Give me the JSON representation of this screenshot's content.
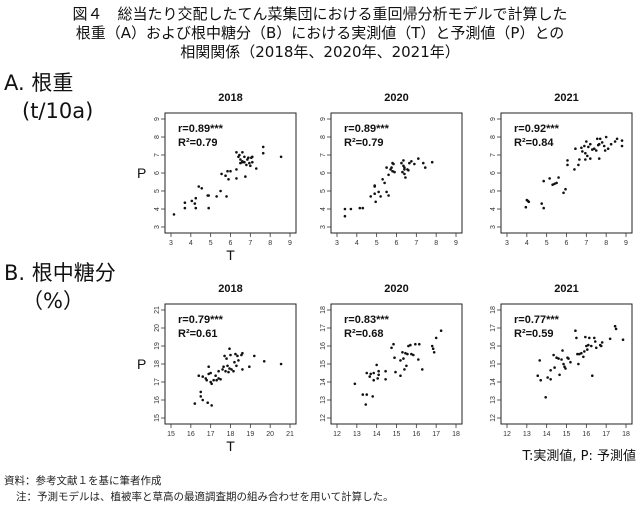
{
  "title": {
    "line1": "図４　総当たり交配したてん菜集団における重回帰分析モデルで計算した",
    "line2": "根重（A）および根中糖分（B）における実測値（T）と予測値（P）との",
    "line3": "相関関係（2018年、2020年、2021年）"
  },
  "sections": {
    "a_label": "A. 根重",
    "a_unit": "(t/10a)",
    "b_label": "B. 根中糖分",
    "b_unit": "（%）"
  },
  "legend": "T:実測値, P: 予測値",
  "notes": {
    "source": "資料：参考文献１を基に筆者作成",
    "note": "注：予測モデルは、植被率と草高の最適調査期の組み合わせを用いて計算した。"
  },
  "chart_data": [
    {
      "type": "scatter",
      "section": "A",
      "title": "2018",
      "xlabel": "T",
      "ylabel": "P",
      "xlim": [
        3,
        9
      ],
      "ylim": [
        3,
        9
      ],
      "ticks": [
        3,
        4,
        5,
        6,
        7,
        8,
        9
      ],
      "r": "r=0.89***",
      "r2": "R²=0.79",
      "points": [
        [
          3.15,
          3.7
        ],
        [
          3.7,
          4.05
        ],
        [
          3.7,
          4.35
        ],
        [
          4.05,
          4.45
        ],
        [
          4.2,
          4.3
        ],
        [
          4.25,
          4.6
        ],
        [
          4.25,
          4.05
        ],
        [
          4.4,
          5.25
        ],
        [
          4.55,
          5.15
        ],
        [
          4.85,
          4.75
        ],
        [
          4.9,
          4.75
        ],
        [
          4.9,
          4.05
        ],
        [
          5.3,
          4.7
        ],
        [
          5.5,
          5.0
        ],
        [
          5.8,
          4.7
        ],
        [
          5.55,
          5.95
        ],
        [
          5.75,
          5.85
        ],
        [
          5.85,
          6.1
        ],
        [
          5.9,
          5.65
        ],
        [
          6.0,
          6.1
        ],
        [
          6.3,
          6.2
        ],
        [
          6.3,
          5.7
        ],
        [
          6.3,
          7.15
        ],
        [
          6.4,
          6.9
        ],
        [
          6.45,
          7.0
        ],
        [
          6.5,
          6.75
        ],
        [
          6.5,
          6.55
        ],
        [
          6.6,
          7.15
        ],
        [
          6.6,
          6.6
        ],
        [
          6.7,
          6.9
        ],
        [
          6.7,
          6.6
        ],
        [
          6.8,
          6.45
        ],
        [
          6.75,
          5.8
        ],
        [
          6.85,
          6.75
        ],
        [
          6.9,
          6.85
        ],
        [
          6.95,
          6.55
        ],
        [
          7.0,
          6.4
        ],
        [
          7.05,
          6.85
        ],
        [
          7.1,
          6.6
        ],
        [
          7.1,
          6.9
        ],
        [
          7.3,
          6.25
        ],
        [
          7.65,
          7.1
        ],
        [
          7.65,
          7.45
        ],
        [
          8.55,
          6.9
        ],
        [
          6.6,
          6.65
        ]
      ]
    },
    {
      "type": "scatter",
      "section": "A",
      "title": "2020",
      "xlabel": "",
      "ylabel": "",
      "xlim": [
        3,
        9
      ],
      "ylim": [
        3,
        9
      ],
      "ticks": [
        3,
        4,
        5,
        6,
        7,
        8,
        9
      ],
      "r": "r=0.89***",
      "r2": "R²=0.79",
      "points": [
        [
          3.4,
          3.6
        ],
        [
          3.4,
          4.0
        ],
        [
          3.7,
          4.0
        ],
        [
          4.15,
          4.05
        ],
        [
          4.3,
          4.05
        ],
        [
          4.7,
          4.7
        ],
        [
          4.9,
          5.3
        ],
        [
          4.9,
          5.25
        ],
        [
          4.9,
          4.85
        ],
        [
          4.95,
          4.4
        ],
        [
          5.1,
          4.95
        ],
        [
          5.2,
          4.7
        ],
        [
          5.3,
          5.65
        ],
        [
          5.4,
          5.45
        ],
        [
          5.5,
          4.95
        ],
        [
          5.6,
          4.75
        ],
        [
          5.5,
          6.3
        ],
        [
          5.6,
          5.9
        ],
        [
          5.7,
          6.2
        ],
        [
          5.8,
          6.55
        ],
        [
          5.85,
          6.5
        ],
        [
          5.8,
          6.1
        ],
        [
          5.9,
          6.05
        ],
        [
          5.75,
          6.3
        ],
        [
          6.25,
          6.55
        ],
        [
          6.3,
          6.05
        ],
        [
          6.35,
          6.7
        ],
        [
          6.35,
          6.4
        ],
        [
          6.4,
          6.3
        ],
        [
          6.4,
          6.2
        ],
        [
          6.45,
          5.75
        ],
        [
          6.4,
          5.95
        ],
        [
          6.55,
          6.2
        ],
        [
          6.6,
          6.15
        ],
        [
          6.65,
          6.55
        ],
        [
          6.75,
          6.65
        ],
        [
          6.9,
          6.5
        ],
        [
          7.1,
          6.8
        ],
        [
          7.35,
          6.55
        ],
        [
          7.45,
          6.3
        ],
        [
          7.8,
          6.6
        ]
      ]
    },
    {
      "type": "scatter",
      "section": "A",
      "title": "2021",
      "xlabel": "",
      "ylabel": "",
      "xlim": [
        3,
        9
      ],
      "ylim": [
        3,
        9
      ],
      "ticks": [
        3,
        4,
        5,
        6,
        7,
        8,
        9
      ],
      "r": "r=0.92***",
      "r2": "R²=0.84",
      "points": [
        [
          3.95,
          4.1
        ],
        [
          4.0,
          4.5
        ],
        [
          4.05,
          4.45
        ],
        [
          4.1,
          4.4
        ],
        [
          4.75,
          4.3
        ],
        [
          4.85,
          5.55
        ],
        [
          4.85,
          4.05
        ],
        [
          5.15,
          5.7
        ],
        [
          5.3,
          5.35
        ],
        [
          5.4,
          5.4
        ],
        [
          5.5,
          5.45
        ],
        [
          5.6,
          5.75
        ],
        [
          5.85,
          4.9
        ],
        [
          5.95,
          5.1
        ],
        [
          6.05,
          6.45
        ],
        [
          6.05,
          6.7
        ],
        [
          6.4,
          6.2
        ],
        [
          6.45,
          7.35
        ],
        [
          6.6,
          6.45
        ],
        [
          6.65,
          6.75
        ],
        [
          6.75,
          7.4
        ],
        [
          6.8,
          7.2
        ],
        [
          6.9,
          7.5
        ],
        [
          6.95,
          7.1
        ],
        [
          6.95,
          6.75
        ],
        [
          7.0,
          7.75
        ],
        [
          7.05,
          6.95
        ],
        [
          7.1,
          7.45
        ],
        [
          7.2,
          7.6
        ],
        [
          7.2,
          6.8
        ],
        [
          7.3,
          7.3
        ],
        [
          7.4,
          7.35
        ],
        [
          7.5,
          7.25
        ],
        [
          7.6,
          7.55
        ],
        [
          7.65,
          6.8
        ],
        [
          7.65,
          7.6
        ],
        [
          7.7,
          7.9
        ],
        [
          7.8,
          7.7
        ],
        [
          7.9,
          7.5
        ],
        [
          7.95,
          7.25
        ],
        [
          8.0,
          8.0
        ],
        [
          8.1,
          7.35
        ],
        [
          8.25,
          7.6
        ],
        [
          8.45,
          7.75
        ],
        [
          8.55,
          7.9
        ],
        [
          8.8,
          7.5
        ],
        [
          8.8,
          7.8
        ],
        [
          7.55,
          7.9
        ]
      ]
    },
    {
      "type": "scatter",
      "section": "B",
      "title": "2018",
      "xlabel": "T",
      "ylabel": "P",
      "xlim": [
        15,
        21
      ],
      "ylim": [
        15,
        21
      ],
      "ticks": [
        15,
        16,
        17,
        18,
        19,
        20,
        21
      ],
      "r": "r=0.79***",
      "r2": "R²=0.61",
      "points": [
        [
          16.2,
          15.8
        ],
        [
          16.4,
          17.35
        ],
        [
          16.5,
          16.45
        ],
        [
          16.5,
          16.2
        ],
        [
          16.6,
          16.0
        ],
        [
          16.6,
          17.3
        ],
        [
          16.75,
          17.2
        ],
        [
          16.8,
          17.1
        ],
        [
          16.85,
          15.85
        ],
        [
          16.9,
          17.85
        ],
        [
          16.9,
          17.45
        ],
        [
          17.0,
          17.5
        ],
        [
          17.0,
          17.0
        ],
        [
          17.05,
          16.9
        ],
        [
          17.05,
          15.7
        ],
        [
          17.15,
          17.1
        ],
        [
          17.25,
          17.35
        ],
        [
          17.3,
          17.1
        ],
        [
          17.4,
          17.6
        ],
        [
          17.4,
          17.2
        ],
        [
          17.5,
          17.15
        ],
        [
          17.6,
          17.7
        ],
        [
          17.65,
          17.85
        ],
        [
          17.7,
          18.45
        ],
        [
          17.75,
          17.6
        ],
        [
          17.8,
          18.3
        ],
        [
          17.85,
          17.9
        ],
        [
          17.9,
          17.55
        ],
        [
          17.95,
          17.75
        ],
        [
          17.95,
          18.85
        ],
        [
          18.0,
          18.5
        ],
        [
          18.05,
          17.7
        ],
        [
          18.15,
          17.6
        ],
        [
          18.2,
          18.1
        ],
        [
          18.25,
          18.55
        ],
        [
          18.3,
          17.9
        ],
        [
          18.35,
          18.45
        ],
        [
          18.55,
          18.5
        ],
        [
          18.6,
          18.6
        ],
        [
          18.6,
          17.7
        ],
        [
          18.95,
          17.85
        ],
        [
          19.2,
          18.45
        ],
        [
          19.7,
          18.15
        ],
        [
          20.55,
          18.0
        ],
        [
          18.4,
          18.2
        ]
      ]
    },
    {
      "type": "scatter",
      "section": "B",
      "title": "2020",
      "xlabel": "",
      "ylabel": "",
      "xlim": [
        12,
        18
      ],
      "ylim": [
        12,
        18
      ],
      "ticks": [
        12,
        13,
        14,
        15,
        16,
        17,
        18
      ],
      "r": "r=0.83***",
      "r2": "R²=0.68",
      "points": [
        [
          12.9,
          13.9
        ],
        [
          13.3,
          13.3
        ],
        [
          13.45,
          12.75
        ],
        [
          13.5,
          13.3
        ],
        [
          13.5,
          14.5
        ],
        [
          13.65,
          14.3
        ],
        [
          13.7,
          14.45
        ],
        [
          13.8,
          13.2
        ],
        [
          13.85,
          14.1
        ],
        [
          13.85,
          14.5
        ],
        [
          14.0,
          14.95
        ],
        [
          14.05,
          14.2
        ],
        [
          14.1,
          14.6
        ],
        [
          14.1,
          14.4
        ],
        [
          14.45,
          14.6
        ],
        [
          14.45,
          14.15
        ],
        [
          14.75,
          15.9
        ],
        [
          14.85,
          16.1
        ],
        [
          14.9,
          15.35
        ],
        [
          14.95,
          14.55
        ],
        [
          15.2,
          14.35
        ],
        [
          15.2,
          15.2
        ],
        [
          15.3,
          15.65
        ],
        [
          15.35,
          15.3
        ],
        [
          15.4,
          14.7
        ],
        [
          15.45,
          15.6
        ],
        [
          15.5,
          14.9
        ],
        [
          15.55,
          15.55
        ],
        [
          15.6,
          16.0
        ],
        [
          15.7,
          16.05
        ],
        [
          15.75,
          15.55
        ],
        [
          15.85,
          15.5
        ],
        [
          15.95,
          16.1
        ],
        [
          16.1,
          15.25
        ],
        [
          16.15,
          16.1
        ],
        [
          16.3,
          14.7
        ],
        [
          16.8,
          16.0
        ],
        [
          16.85,
          15.85
        ],
        [
          16.9,
          15.65
        ],
        [
          17.0,
          16.45
        ],
        [
          17.25,
          16.85
        ]
      ]
    },
    {
      "type": "scatter",
      "section": "B",
      "title": "2021",
      "xlabel": "",
      "ylabel": "",
      "xlim": [
        12,
        18
      ],
      "ylim": [
        12,
        18
      ],
      "ticks": [
        12,
        13,
        14,
        15,
        16,
        17,
        18
      ],
      "r": "r=0.77***",
      "r2": "R²=0.59",
      "points": [
        [
          13.55,
          14.35
        ],
        [
          13.65,
          15.2
        ],
        [
          13.7,
          14.1
        ],
        [
          13.95,
          13.15
        ],
        [
          14.05,
          14.25
        ],
        [
          14.2,
          14.15
        ],
        [
          14.2,
          14.65
        ],
        [
          14.35,
          15.5
        ],
        [
          14.4,
          14.8
        ],
        [
          14.5,
          15.35
        ],
        [
          14.6,
          15.3
        ],
        [
          14.65,
          14.4
        ],
        [
          14.75,
          15.25
        ],
        [
          14.8,
          15.75
        ],
        [
          14.85,
          15.0
        ],
        [
          14.9,
          14.85
        ],
        [
          14.95,
          14.75
        ],
        [
          15.05,
          15.35
        ],
        [
          15.1,
          15.3
        ],
        [
          15.2,
          15.1
        ],
        [
          15.45,
          16.85
        ],
        [
          15.5,
          16.45
        ],
        [
          15.55,
          15.55
        ],
        [
          15.6,
          15.0
        ],
        [
          15.65,
          15.55
        ],
        [
          15.75,
          15.6
        ],
        [
          15.85,
          15.4
        ],
        [
          15.9,
          15.7
        ],
        [
          15.95,
          16.5
        ],
        [
          16.0,
          16.0
        ],
        [
          16.05,
          15.8
        ],
        [
          16.1,
          16.05
        ],
        [
          16.15,
          16.45
        ],
        [
          16.25,
          16.0
        ],
        [
          16.3,
          14.35
        ],
        [
          16.4,
          16.45
        ],
        [
          16.45,
          16.25
        ],
        [
          16.5,
          15.9
        ],
        [
          16.7,
          16.05
        ],
        [
          16.75,
          16.0
        ],
        [
          16.8,
          16.2
        ],
        [
          17.2,
          16.4
        ],
        [
          17.45,
          17.1
        ],
        [
          17.5,
          16.95
        ],
        [
          17.85,
          16.35
        ]
      ]
    }
  ]
}
